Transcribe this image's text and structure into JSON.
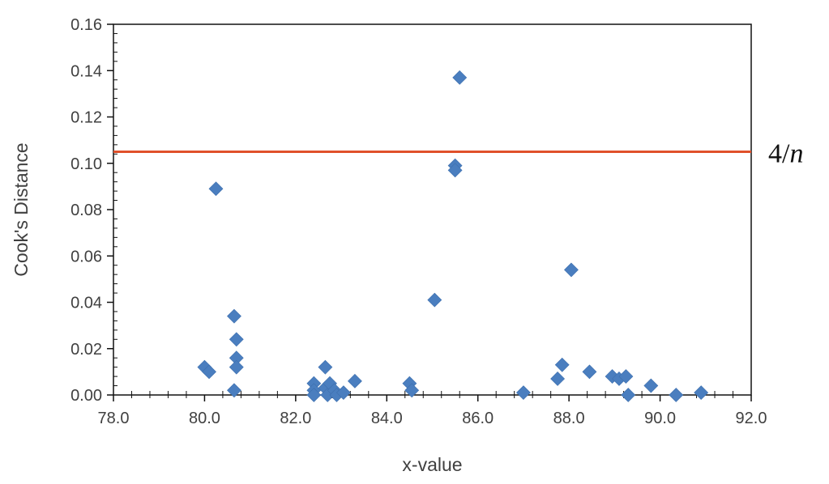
{
  "chart_data": {
    "type": "scatter",
    "title": "",
    "xlabel": "x-value",
    "ylabel": "Cook's Distance",
    "xlim": [
      78.0,
      92.0
    ],
    "ylim": [
      0.0,
      0.16
    ],
    "x_ticks": [
      "78.0",
      "80.0",
      "82.0",
      "84.0",
      "86.0",
      "88.0",
      "90.0",
      "92.0"
    ],
    "y_ticks": [
      "0.00",
      "0.02",
      "0.04",
      "0.06",
      "0.08",
      "0.10",
      "0.12",
      "0.14",
      "0.16"
    ],
    "grid": false,
    "legend": "none",
    "marker": "diamond",
    "marker_color": "#4a7ebf",
    "reference_line": {
      "y": 0.105,
      "color": "#e0502a",
      "label_prefix": "4/",
      "label_var": "n"
    },
    "points": [
      {
        "x": 80.0,
        "y": 0.012
      },
      {
        "x": 80.1,
        "y": 0.01
      },
      {
        "x": 80.25,
        "y": 0.089
      },
      {
        "x": 80.65,
        "y": 0.034
      },
      {
        "x": 80.7,
        "y": 0.024
      },
      {
        "x": 80.7,
        "y": 0.016
      },
      {
        "x": 80.7,
        "y": 0.012
      },
      {
        "x": 80.65,
        "y": 0.002
      },
      {
        "x": 82.4,
        "y": 0.005
      },
      {
        "x": 82.4,
        "y": 0.002
      },
      {
        "x": 82.4,
        "y": 0.0
      },
      {
        "x": 82.65,
        "y": 0.012
      },
      {
        "x": 82.65,
        "y": 0.003
      },
      {
        "x": 82.75,
        "y": 0.005
      },
      {
        "x": 82.7,
        "y": 0.0
      },
      {
        "x": 82.85,
        "y": 0.002
      },
      {
        "x": 82.9,
        "y": 0.0
      },
      {
        "x": 83.05,
        "y": 0.001
      },
      {
        "x": 83.3,
        "y": 0.006
      },
      {
        "x": 84.5,
        "y": 0.005
      },
      {
        "x": 84.55,
        "y": 0.002
      },
      {
        "x": 85.05,
        "y": 0.041
      },
      {
        "x": 85.5,
        "y": 0.099
      },
      {
        "x": 85.5,
        "y": 0.097
      },
      {
        "x": 85.6,
        "y": 0.137
      },
      {
        "x": 87.0,
        "y": 0.001
      },
      {
        "x": 87.75,
        "y": 0.007
      },
      {
        "x": 87.85,
        "y": 0.013
      },
      {
        "x": 88.05,
        "y": 0.054
      },
      {
        "x": 88.45,
        "y": 0.01
      },
      {
        "x": 88.95,
        "y": 0.008
      },
      {
        "x": 89.1,
        "y": 0.007
      },
      {
        "x": 89.25,
        "y": 0.008
      },
      {
        "x": 89.3,
        "y": 0.0
      },
      {
        "x": 89.8,
        "y": 0.004
      },
      {
        "x": 90.35,
        "y": 0.0
      },
      {
        "x": 90.9,
        "y": 0.001
      }
    ]
  }
}
